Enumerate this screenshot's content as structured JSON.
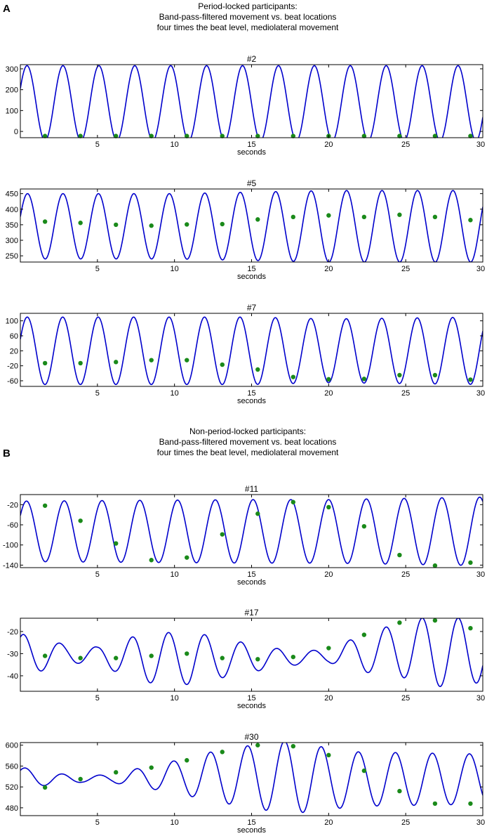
{
  "panels": [
    {
      "letter": "A",
      "heading": [
        "Period-locked participants:",
        "Band-pass-filtered movement vs. beat locations",
        "four times the beat level, mediolateral movement"
      ]
    },
    {
      "letter": "B",
      "heading": [
        "Non-period-locked participants:",
        "Band-pass-filtered movement vs. beat locations",
        "four times the beat level, mediolateral movement"
      ]
    }
  ],
  "colors": {
    "line": "#0000cc",
    "beat": "#1a8a1a",
    "axis": "#000000"
  },
  "chart_data": [
    {
      "type": "line",
      "title": "#2",
      "xlabel": "seconds",
      "ylabel": "",
      "xlim": [
        0,
        30
      ],
      "ylim": [
        -30,
        320
      ],
      "xticks": [
        5,
        10,
        15,
        20,
        25,
        30
      ],
      "yticks": [
        0,
        100,
        200,
        300
      ],
      "series": [
        {
          "waveform": {
            "period": 2.33,
            "phase": 0.4,
            "points": [
              [
                0,
                135,
                180
              ],
              [
                30,
                135,
                180
              ]
            ]
          }
        }
      ],
      "beats": {
        "x": [
          1.6,
          3.9,
          6.2,
          8.5,
          10.8,
          13.1,
          15.4,
          17.7,
          20.0,
          22.3,
          24.6,
          26.9,
          29.2
        ],
        "y": [
          -22,
          -22,
          -22,
          -22,
          -22,
          -22,
          -22,
          -22,
          -22,
          -22,
          -22,
          -22,
          -22
        ]
      }
    },
    {
      "type": "line",
      "title": "#5",
      "xlabel": "seconds",
      "ylabel": "",
      "xlim": [
        0,
        30
      ],
      "ylim": [
        230,
        465
      ],
      "xticks": [
        5,
        10,
        15,
        20,
        25,
        30
      ],
      "yticks": [
        250,
        300,
        350,
        400,
        450
      ],
      "series": [
        {
          "waveform": {
            "period": 2.3,
            "phase": 0.3,
            "points": [
              [
                0,
                345,
                105
              ],
              [
                10,
                345,
                105
              ],
              [
                20,
                345,
                115
              ],
              [
                30,
                345,
                115
              ]
            ]
          }
        }
      ],
      "beats": {
        "x": [
          1.6,
          3.9,
          6.2,
          8.5,
          10.8,
          13.1,
          15.4,
          17.7,
          20.0,
          22.3,
          24.6,
          26.9,
          29.2
        ],
        "y": [
          360,
          356,
          350,
          347,
          351,
          352,
          367,
          375,
          380,
          375,
          382,
          375,
          365
        ]
      }
    },
    {
      "type": "line",
      "title": "#7",
      "xlabel": "seconds",
      "ylabel": "",
      "xlim": [
        0,
        30
      ],
      "ylim": [
        -75,
        120
      ],
      "xticks": [
        5,
        10,
        15,
        20,
        25,
        30
      ],
      "yticks": [
        -60,
        -20,
        20,
        60,
        100
      ],
      "series": [
        {
          "waveform": {
            "period": 2.3,
            "phase": 0.35,
            "points": [
              [
                0,
                20,
                90
              ],
              [
                15,
                20,
                90
              ],
              [
                20,
                20,
                85
              ],
              [
                30,
                20,
                90
              ]
            ]
          }
        }
      ],
      "beats": {
        "x": [
          1.6,
          3.9,
          6.2,
          8.5,
          10.8,
          13.1,
          15.4,
          17.7,
          20.0,
          22.3,
          24.6,
          26.9,
          29.2
        ],
        "y": [
          -13,
          -13,
          -10,
          -5,
          -5,
          -17,
          -30,
          -50,
          -56,
          -55,
          -45,
          -45,
          -57
        ]
      }
    },
    {
      "type": "line",
      "title": "#11",
      "xlabel": "seconds",
      "ylabel": "",
      "xlim": [
        0,
        30
      ],
      "ylim": [
        -145,
        0
      ],
      "xticks": [
        5,
        10,
        15,
        20,
        25,
        30
      ],
      "yticks": [
        -140,
        -100,
        -60,
        -20
      ],
      "series": [
        {
          "waveform": {
            "period": 2.45,
            "phase": 0.55,
            "points": [
              [
                0,
                -73,
                60
              ],
              [
                15,
                -73,
                63
              ],
              [
                20,
                -73,
                63
              ],
              [
                30,
                -73,
                68
              ]
            ]
          }
        }
      ],
      "beats": {
        "x": [
          1.6,
          3.9,
          6.2,
          8.5,
          10.8,
          13.1,
          15.4,
          17.7,
          20.0,
          22.3,
          24.6,
          26.9,
          29.2
        ],
        "y": [
          -22,
          -52,
          -97,
          -130,
          -125,
          -79,
          -38,
          -15,
          -25,
          -63,
          -120,
          -141,
          -135
        ]
      }
    },
    {
      "type": "line",
      "title": "#17",
      "xlabel": "seconds",
      "ylabel": "",
      "xlim": [
        0,
        30
      ],
      "ylim": [
        -47,
        -14
      ],
      "xticks": [
        5,
        10,
        15,
        20,
        25,
        30
      ],
      "yticks": [
        -40,
        -30,
        -20
      ],
      "series": [
        {
          "waveform": {
            "period": 2.35,
            "phase": 1.0,
            "points": [
              [
                0,
                -31,
                10
              ],
              [
                3,
                -30,
                4
              ],
              [
                5,
                -31,
                4
              ],
              [
                8,
                -32,
                11
              ],
              [
                11,
                -32,
                12
              ],
              [
                13,
                -32,
                9
              ],
              [
                16,
                -32,
                5
              ],
              [
                18,
                -32,
                3
              ],
              [
                20,
                -31,
                3
              ],
              [
                22,
                -30,
                8
              ],
              [
                25,
                -28,
                13
              ],
              [
                27,
                -29,
                16
              ],
              [
                30,
                -29,
                14
              ]
            ]
          }
        }
      ],
      "beats": {
        "x": [
          1.6,
          3.9,
          6.2,
          8.5,
          10.8,
          13.1,
          15.4,
          17.7,
          20.0,
          22.3,
          24.6,
          26.9,
          29.2
        ],
        "y": [
          -31,
          -32,
          -32,
          -31,
          -30,
          -32,
          -32.5,
          -31.5,
          -27.5,
          -21.5,
          -16,
          -15,
          -18.5
        ]
      }
    },
    {
      "type": "line",
      "title": "#30",
      "xlabel": "seconds",
      "ylabel": "",
      "xlim": [
        0,
        30
      ],
      "ylim": [
        465,
        605
      ],
      "xticks": [
        5,
        10,
        15,
        20,
        25,
        30
      ],
      "yticks": [
        480,
        520,
        560,
        600
      ],
      "series": [
        {
          "waveform": {
            "period": 2.4,
            "phase": 0.7,
            "points": [
              [
                0,
                540,
                18
              ],
              [
                2,
                535,
                12
              ],
              [
                4,
                535,
                6
              ],
              [
                6,
                536,
                8
              ],
              [
                8,
                538,
                20
              ],
              [
                10,
                540,
                30
              ],
              [
                12,
                540,
                45
              ],
              [
                14,
                540,
                55
              ],
              [
                16,
                540,
                65
              ],
              [
                18,
                540,
                70
              ],
              [
                20,
                535,
                58
              ],
              [
                22,
                535,
                52
              ],
              [
                26,
                535,
                50
              ],
              [
                30,
                535,
                48
              ]
            ]
          }
        }
      ],
      "beats": {
        "x": [
          1.6,
          3.9,
          6.2,
          8.5,
          10.8,
          13.1,
          15.4,
          17.7,
          20.0,
          22.3,
          24.6,
          26.9,
          29.2
        ],
        "y": [
          519,
          535,
          548,
          557,
          571,
          587,
          600,
          598,
          581,
          551,
          512,
          488,
          488
        ]
      }
    }
  ]
}
